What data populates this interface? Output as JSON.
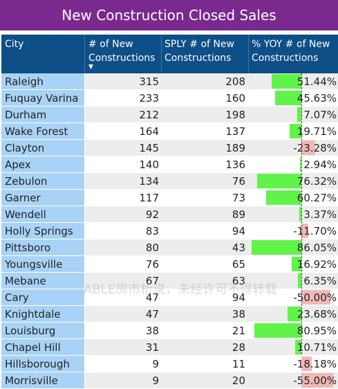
{
  "title": "New Construction Closed Sales",
  "columns": {
    "city": "City",
    "new": "# of New Constructions",
    "sply": "SPLY # of New Constructions",
    "yoy": "% YOY # of New Constructions"
  },
  "sort_icon": "sort-descending-icon",
  "watermark": "ABLE房市析说，未经许可不得转载",
  "colors": {
    "positive_bar": "#61f34a",
    "negative_bar": "#f2b8b5",
    "header": "#0d4f86",
    "title": "#7a2a8f",
    "city_cell": "#a9d3f6"
  },
  "rows": [
    {
      "city": "Raleigh",
      "new": "315",
      "sply": "208",
      "yoy": "51.44%"
    },
    {
      "city": "Fuquay Varina",
      "new": "233",
      "sply": "160",
      "yoy": "45.63%"
    },
    {
      "city": "Durham",
      "new": "212",
      "sply": "198",
      "yoy": "7.07%"
    },
    {
      "city": "Wake Forest",
      "new": "164",
      "sply": "137",
      "yoy": "19.71%"
    },
    {
      "city": "Clayton",
      "new": "145",
      "sply": "189",
      "yoy": "-23.28%"
    },
    {
      "city": "Apex",
      "new": "140",
      "sply": "136",
      "yoy": "2.94%"
    },
    {
      "city": "Zebulon",
      "new": "134",
      "sply": "76",
      "yoy": "76.32%"
    },
    {
      "city": "Garner",
      "new": "117",
      "sply": "73",
      "yoy": "60.27%"
    },
    {
      "city": "Wendell",
      "new": "92",
      "sply": "89",
      "yoy": "3.37%"
    },
    {
      "city": "Holly Springs",
      "new": "83",
      "sply": "94",
      "yoy": "-11.70%"
    },
    {
      "city": "Pittsboro",
      "new": "80",
      "sply": "43",
      "yoy": "86.05%"
    },
    {
      "city": "Youngsville",
      "new": "76",
      "sply": "65",
      "yoy": "16.92%"
    },
    {
      "city": "Mebane",
      "new": "67",
      "sply": "63",
      "yoy": "6.35%"
    },
    {
      "city": "Cary",
      "new": "47",
      "sply": "94",
      "yoy": "-50.00%"
    },
    {
      "city": "Knightdale",
      "new": "47",
      "sply": "38",
      "yoy": "23.68%"
    },
    {
      "city": "Louisburg",
      "new": "38",
      "sply": "21",
      "yoy": "80.95%"
    },
    {
      "city": "Chapel Hill",
      "new": "31",
      "sply": "28",
      "yoy": "10.71%"
    },
    {
      "city": "Hillsborough",
      "new": "9",
      "sply": "11",
      "yoy": "-18.18%"
    },
    {
      "city": "Morrisville",
      "new": "9",
      "sply": "20",
      "yoy": "-55.00%"
    }
  ]
}
